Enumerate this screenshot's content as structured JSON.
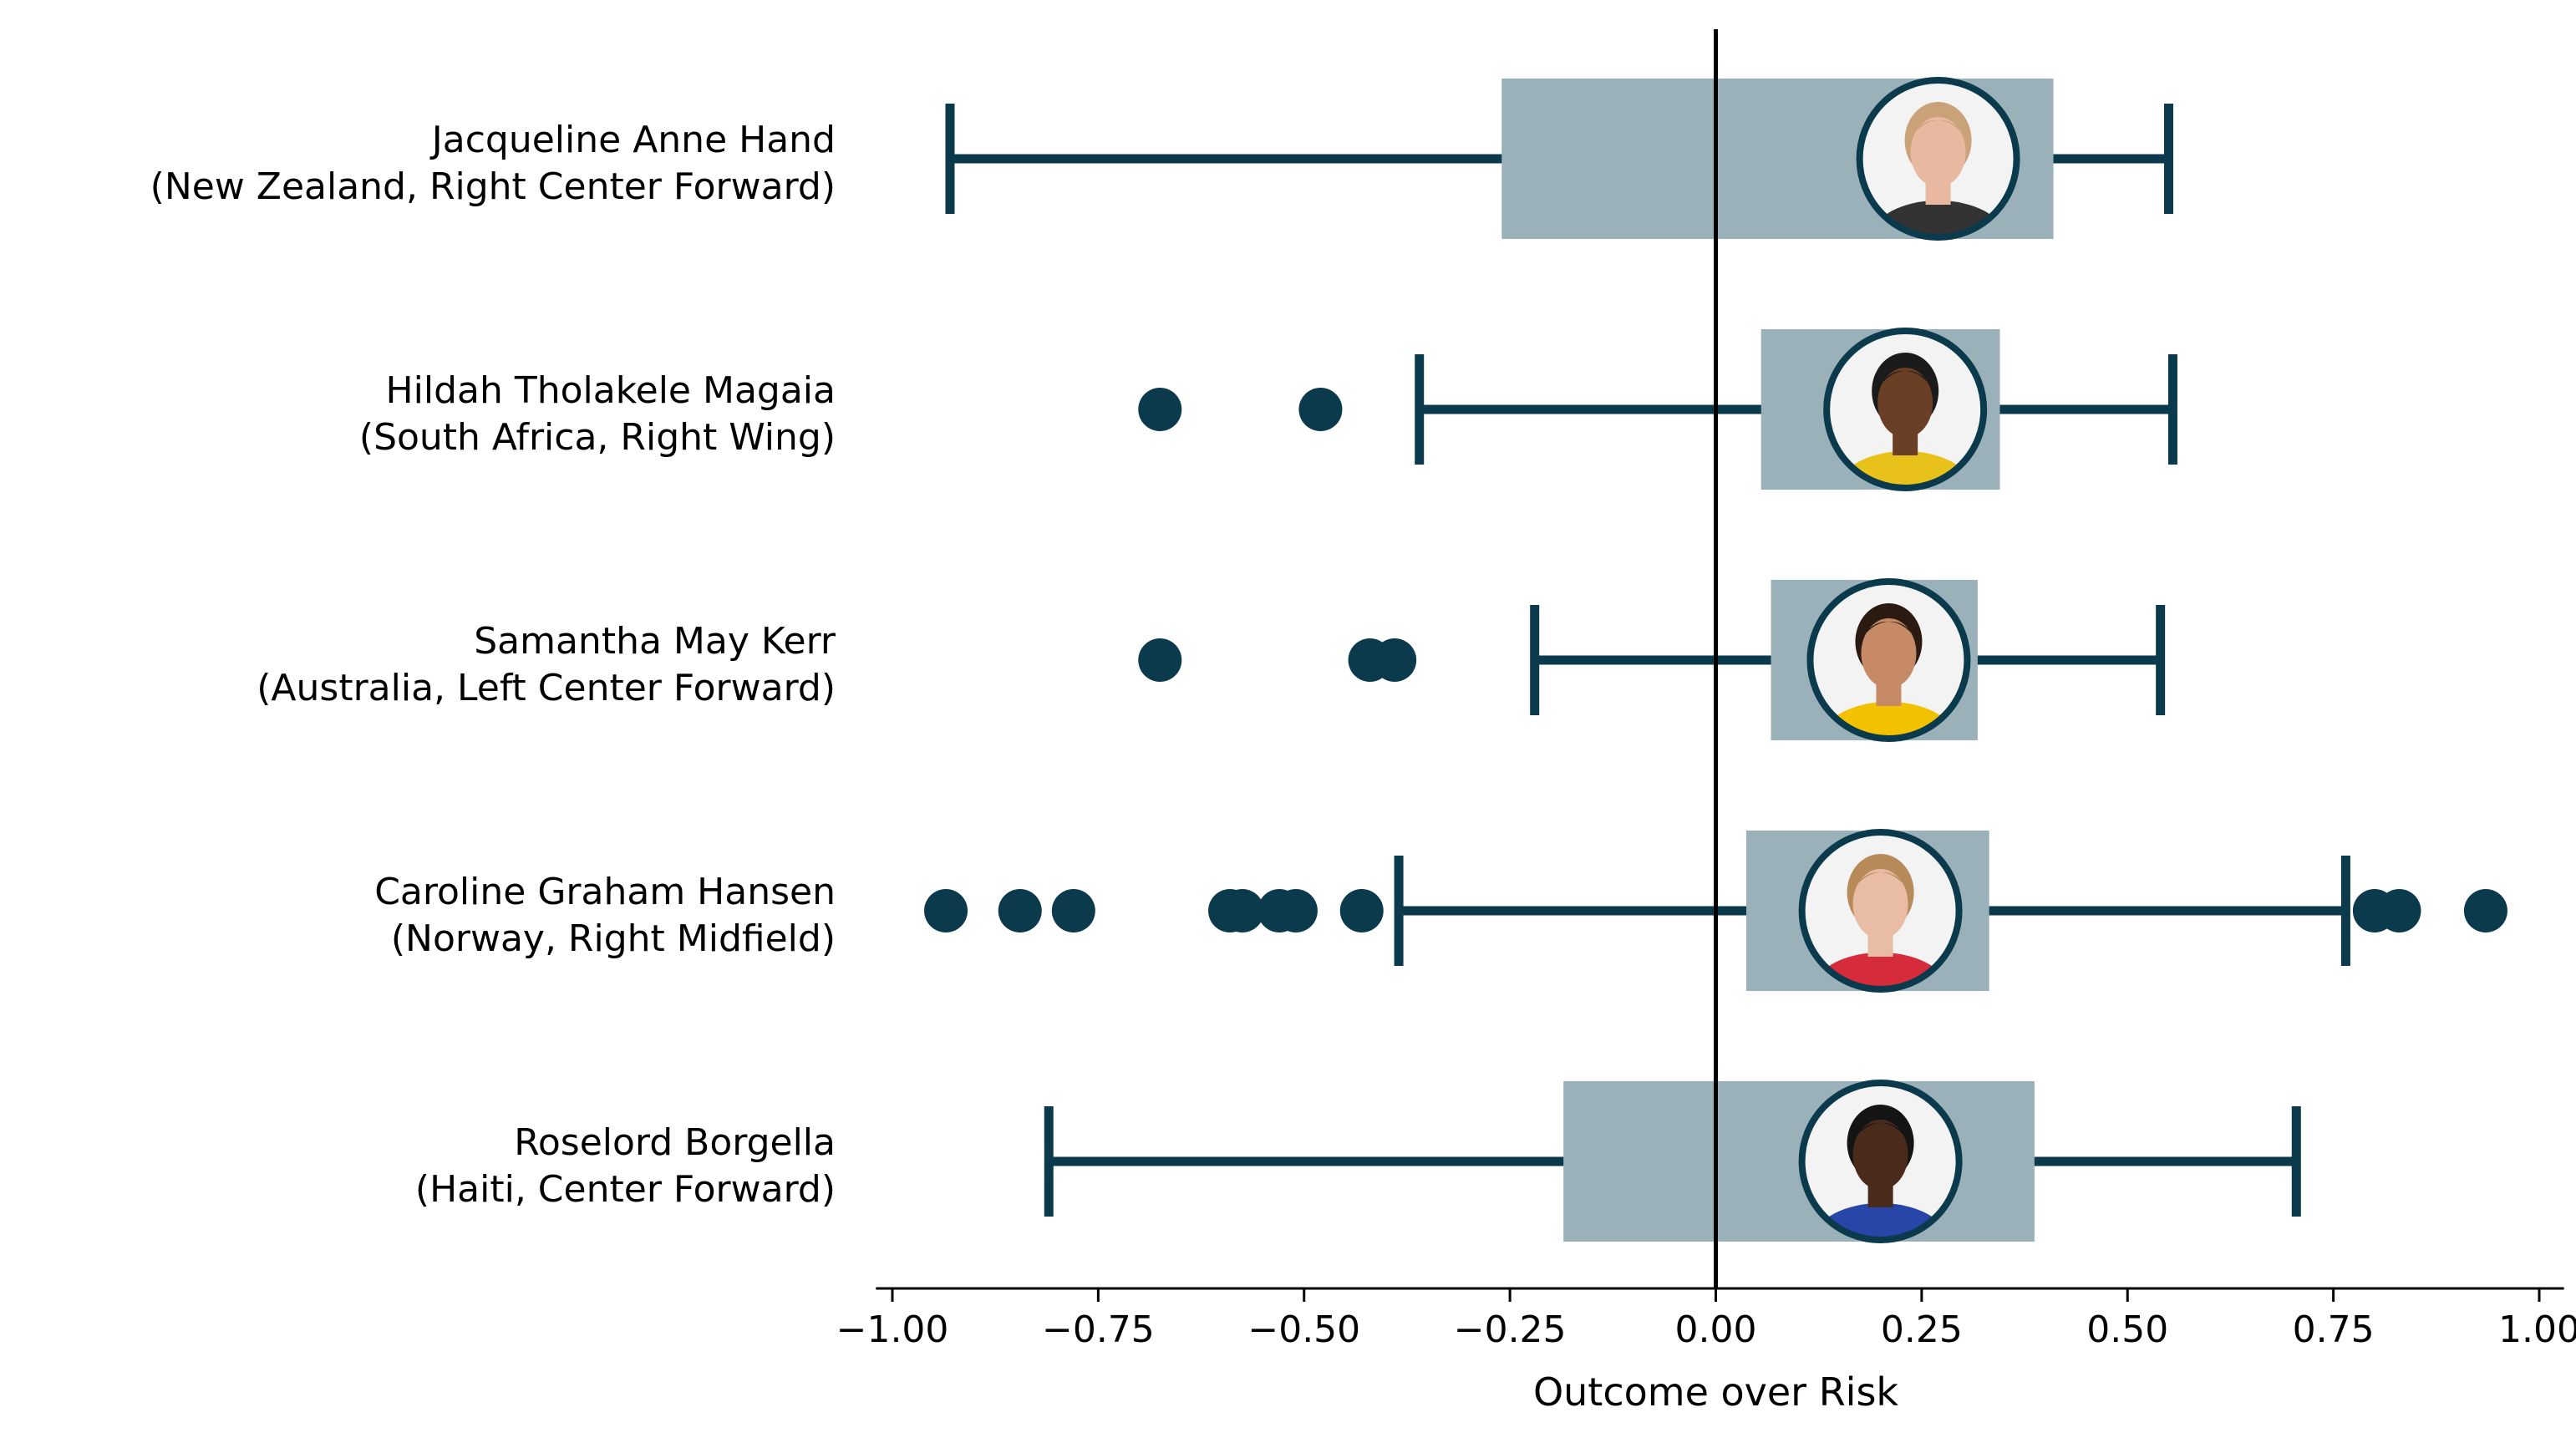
{
  "chart_data": {
    "type": "boxplot",
    "xlabel": "Outcome over Risk",
    "xlim": [
      -1.02,
      1.03
    ],
    "x_ticks": [
      -1.0,
      -0.75,
      -0.5,
      -0.25,
      0.0,
      0.25,
      0.5,
      0.75,
      1.0
    ],
    "x_tick_labels": [
      "−1.00",
      "−0.75",
      "−0.50",
      "−0.25",
      "0.00",
      "0.25",
      "0.50",
      "0.75",
      "1.00"
    ],
    "reference_line_x": 0.0,
    "colors": {
      "box": "#9ab1b9",
      "whisker": "#0a3a4c",
      "outlier": "#0a3a4c",
      "zero_line": "#000000"
    },
    "players": [
      {
        "name": "Jacqueline Anne Hand",
        "detail": "(New Zealand, Right Center Forward)",
        "whisker_low": -0.93,
        "q1": -0.26,
        "median": 0.27,
        "q3": 0.41,
        "whisker_high": 0.55,
        "outliers": [],
        "photo_icon": "player-photo",
        "jersey_color": "#333333",
        "skin_color": "#e8b9a0",
        "hair_color": "#c9a27a"
      },
      {
        "name": "Hildah Tholakele Magaia",
        "detail": "(South Africa, Right Wing)",
        "whisker_low": -0.36,
        "q1": 0.055,
        "median": 0.23,
        "q3": 0.345,
        "whisker_high": 0.555,
        "outliers": [
          -0.675,
          -0.48
        ],
        "photo_icon": "player-photo",
        "jersey_color": "#e8c21a",
        "skin_color": "#6b3e26",
        "hair_color": "#1b1b1b"
      },
      {
        "name": "Samantha May Kerr",
        "detail": "(Australia, Left Center Forward)",
        "whisker_low": -0.22,
        "q1": 0.067,
        "median": 0.21,
        "q3": 0.318,
        "whisker_high": 0.54,
        "outliers": [
          -0.675,
          -0.42,
          -0.39
        ],
        "photo_icon": "player-photo",
        "jersey_color": "#f2c200",
        "skin_color": "#c68a66",
        "hair_color": "#2a1a12"
      },
      {
        "name": "Caroline Graham Hansen",
        "detail": "(Norway, Right Midfield)",
        "whisker_low": -0.385,
        "q1": 0.037,
        "median": 0.2,
        "q3": 0.332,
        "whisker_high": 0.765,
        "outliers": [
          -0.935,
          -0.845,
          -0.78,
          -0.59,
          -0.575,
          -0.53,
          -0.51,
          -0.43,
          0.8,
          0.83,
          0.935
        ],
        "photo_icon": "player-photo",
        "jersey_color": "#d62b3a",
        "skin_color": "#e9bda5",
        "hair_color": "#b78a5a"
      },
      {
        "name": "Roselord Borgella",
        "detail": "(Haiti, Center Forward)",
        "whisker_low": -0.81,
        "q1": -0.185,
        "median": 0.2,
        "q3": 0.387,
        "whisker_high": 0.705,
        "outliers": [],
        "photo_icon": "player-photo",
        "jersey_color": "#2846a8",
        "skin_color": "#4a2a1a",
        "hair_color": "#141414"
      }
    ]
  }
}
